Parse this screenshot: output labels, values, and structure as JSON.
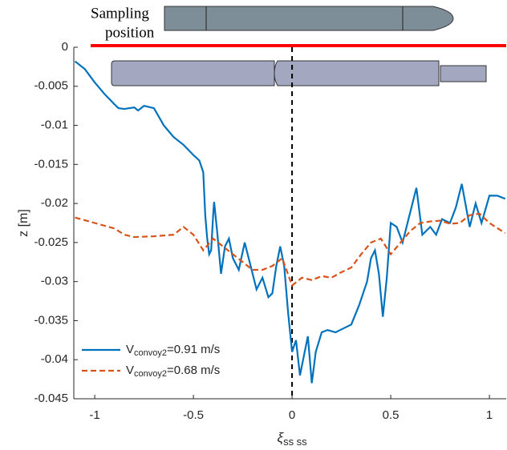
{
  "chart_data": {
    "type": "line",
    "annotation": [
      "Sampling",
      "position"
    ],
    "xlabel": {
      "base": "ξ",
      "subscript": "ss ss"
    },
    "ylabel": "z [m]",
    "xlim": [
      -1.106,
      1.085
    ],
    "ylim": [
      -0.045,
      0
    ],
    "xticks": [
      -1,
      -0.5,
      0,
      0.5,
      1
    ],
    "yticks": [
      0,
      -0.005,
      -0.01,
      -0.015,
      -0.02,
      -0.025,
      -0.03,
      -0.035,
      -0.04,
      -0.045
    ],
    "vline_x": 0,
    "hline_y": 0,
    "hline_color": "#ff0000",
    "legend": "lower left",
    "series": [
      {
        "name": "V",
        "subscript": "convoy2",
        "suffix": "=0.91 m/s",
        "color": "#0072bd",
        "dash": false,
        "x": [
          -1.1,
          -1.05,
          -1.0,
          -0.95,
          -0.9,
          -0.88,
          -0.85,
          -0.8,
          -0.78,
          -0.75,
          -0.7,
          -0.65,
          -0.6,
          -0.55,
          -0.5,
          -0.47,
          -0.45,
          -0.44,
          -0.43,
          -0.42,
          -0.41,
          -0.4,
          -0.395,
          -0.38,
          -0.36,
          -0.34,
          -0.32,
          -0.3,
          -0.27,
          -0.24,
          -0.22,
          -0.2,
          -0.18,
          -0.15,
          -0.12,
          -0.1,
          -0.08,
          -0.06,
          -0.04,
          -0.02,
          0,
          0.02,
          0.04,
          0.06,
          0.08,
          0.1,
          0.12,
          0.15,
          0.18,
          0.22,
          0.26,
          0.3,
          0.34,
          0.38,
          0.4,
          0.42,
          0.44,
          0.46,
          0.48,
          0.5,
          0.53,
          0.56,
          0.6,
          0.63,
          0.66,
          0.7,
          0.73,
          0.76,
          0.8,
          0.83,
          0.86,
          0.9,
          0.93,
          0.96,
          1.0,
          1.04,
          1.08
        ],
        "values": [
          -0.0018,
          -0.0028,
          -0.0045,
          -0.006,
          -0.0073,
          -0.0078,
          -0.0079,
          -0.0077,
          -0.0081,
          -0.0075,
          -0.0078,
          -0.01,
          -0.0115,
          -0.0125,
          -0.0138,
          -0.0145,
          -0.016,
          -0.0215,
          -0.0245,
          -0.0265,
          -0.026,
          -0.0215,
          -0.0198,
          -0.0235,
          -0.029,
          -0.0255,
          -0.0245,
          -0.027,
          -0.0285,
          -0.025,
          -0.027,
          -0.029,
          -0.031,
          -0.0295,
          -0.032,
          -0.0315,
          -0.028,
          -0.0255,
          -0.028,
          -0.034,
          -0.039,
          -0.0375,
          -0.042,
          -0.0395,
          -0.037,
          -0.043,
          -0.039,
          -0.0365,
          -0.0362,
          -0.0365,
          -0.036,
          -0.0355,
          -0.033,
          -0.03,
          -0.027,
          -0.026,
          -0.029,
          -0.0345,
          -0.0295,
          -0.0225,
          -0.023,
          -0.025,
          -0.021,
          -0.018,
          -0.024,
          -0.023,
          -0.024,
          -0.022,
          -0.0225,
          -0.0205,
          -0.0175,
          -0.023,
          -0.02,
          -0.0225,
          -0.019,
          -0.019,
          -0.0194
        ]
      },
      {
        "name": "V",
        "subscript": "convoy2",
        "suffix": "=0.68 m/s",
        "color": "#d95319",
        "dash": true,
        "x": [
          -1.1,
          -1.0,
          -0.9,
          -0.85,
          -0.8,
          -0.7,
          -0.6,
          -0.55,
          -0.5,
          -0.45,
          -0.4,
          -0.35,
          -0.3,
          -0.25,
          -0.2,
          -0.15,
          -0.1,
          -0.05,
          0,
          0.05,
          0.1,
          0.15,
          0.2,
          0.25,
          0.3,
          0.35,
          0.4,
          0.45,
          0.5,
          0.55,
          0.6,
          0.65,
          0.7,
          0.75,
          0.8,
          0.85,
          0.9,
          0.95,
          1.0,
          1.08
        ],
        "values": [
          -0.0218,
          -0.0225,
          -0.0232,
          -0.024,
          -0.0243,
          -0.0242,
          -0.024,
          -0.023,
          -0.024,
          -0.026,
          -0.0245,
          -0.0255,
          -0.0265,
          -0.0275,
          -0.0285,
          -0.0285,
          -0.028,
          -0.027,
          -0.0305,
          -0.0295,
          -0.0298,
          -0.0293,
          -0.0295,
          -0.0288,
          -0.0282,
          -0.0265,
          -0.025,
          -0.0245,
          -0.0265,
          -0.025,
          -0.0235,
          -0.0225,
          -0.0223,
          -0.0222,
          -0.0226,
          -0.0225,
          -0.0215,
          -0.0213,
          -0.0225,
          -0.0238
        ]
      }
    ]
  }
}
